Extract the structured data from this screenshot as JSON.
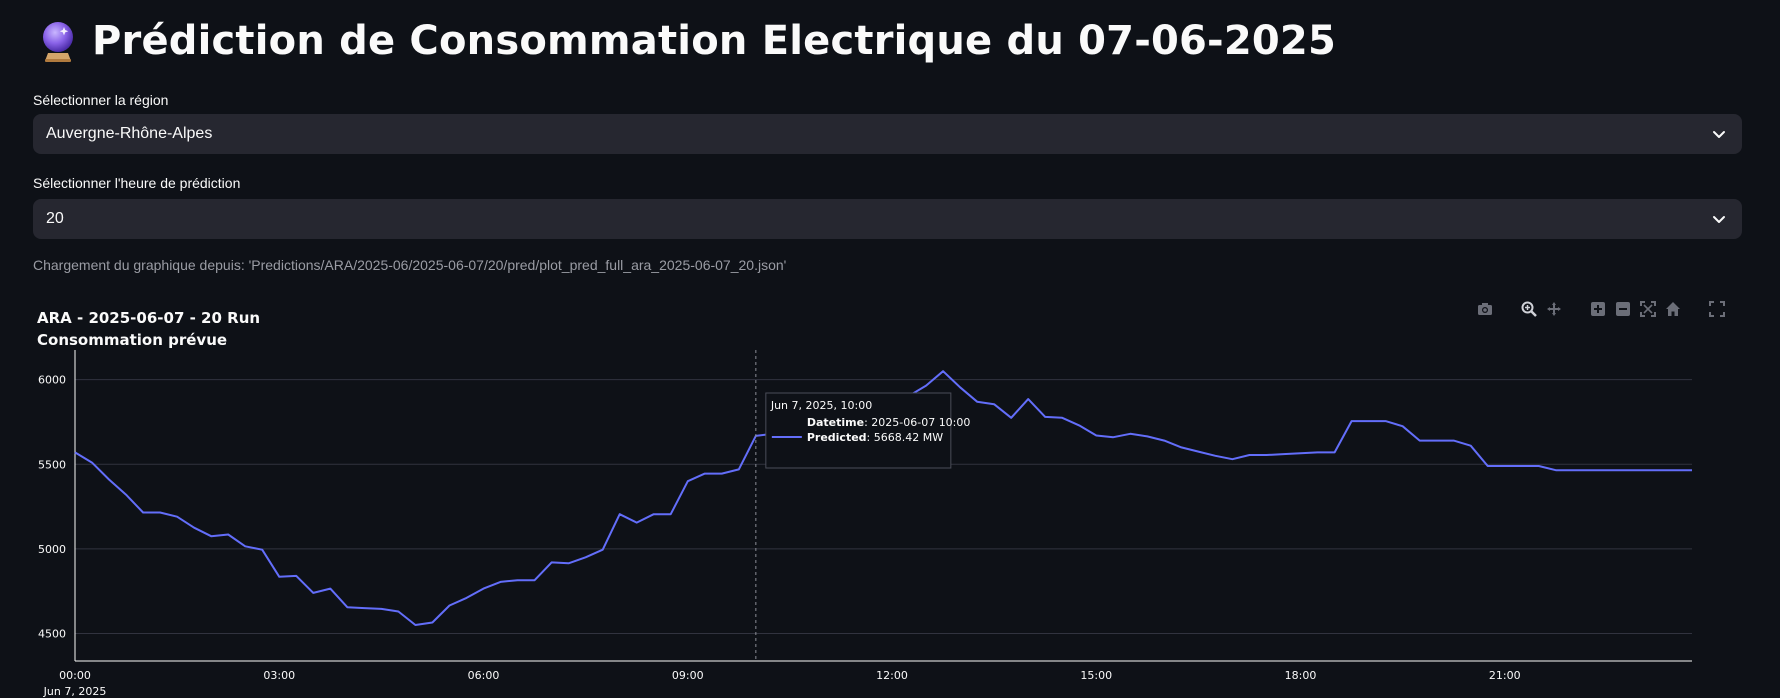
{
  "page": {
    "title": "Prédiction de Consommation Electrique du 07-06-2025",
    "title_icon": "crystal-ball-icon"
  },
  "region_select": {
    "label": "Sélectionner la région",
    "value": "Auvergne-Rhône-Alpes"
  },
  "hour_select": {
    "label": "Sélectionner l'heure de prédiction",
    "value": "20"
  },
  "caption": "Chargement du graphique depuis: 'Predictions/ARA/2025-06/2025-06-07/20/pred/plot_pred_full_ara_2025-06-07_20.json'",
  "modebar": [
    "camera-icon",
    "zoom-icon",
    "pan-icon",
    "zoom-in-icon",
    "zoom-out-icon",
    "autoscale-icon",
    "home-icon",
    "fullscreen-icon"
  ],
  "colors": {
    "series": "#636efa",
    "background": "#0e1117",
    "grid": "#31333f",
    "text": "#fafafa"
  },
  "tooltip": {
    "header": "Jun 7, 2025, 10:00",
    "line1_key": "Datetime",
    "line1_val": ": 2025-06-07 10:00",
    "line2_key": "Predicted",
    "line2_val": ": 5668.42 MW"
  },
  "chart_data": {
    "type": "line",
    "title": "ARA - 2025-06-07 - 20 Run",
    "subtitle": "Consommation prévue",
    "x_tick_labels": [
      "00:00",
      "03:00",
      "06:00",
      "09:00",
      "12:00",
      "15:00",
      "18:00",
      "21:00"
    ],
    "x_date_label": "Jun 7, 2025",
    "y_ticks": [
      4500,
      5000,
      5500,
      6000
    ],
    "x_range_hours": [
      0,
      23.75
    ],
    "y_range": [
      4420,
      6140
    ],
    "hover_x_hour": 10,
    "grid": true,
    "series": [
      {
        "x_hours": [
          0,
          0.25,
          0.5,
          0.75,
          1.0,
          1.25,
          1.5,
          1.75,
          2.0,
          2.25,
          2.5,
          2.75,
          3.0,
          3.25,
          3.5,
          3.75,
          4.0,
          4.25,
          4.5,
          4.75,
          5.0,
          5.25,
          5.5,
          5.75,
          6.0,
          6.25,
          6.5,
          6.75,
          7.0,
          7.25,
          7.5,
          7.75,
          8.0,
          8.25,
          8.5,
          8.75,
          9.0,
          9.25,
          9.5,
          9.75,
          10.0,
          10.25,
          10.5,
          10.75,
          11.0,
          11.25,
          11.5,
          11.75,
          12.0,
          12.25,
          12.5,
          12.75,
          13.0,
          13.25,
          13.5,
          13.75,
          14.0,
          14.25,
          14.5,
          14.75,
          15.0,
          15.25,
          15.5,
          15.75,
          16.0,
          16.25,
          16.5,
          16.75,
          17.0,
          17.25,
          17.5,
          17.75,
          18.0,
          18.25,
          18.5,
          18.75,
          19.0,
          19.25,
          19.5,
          19.75,
          20.0,
          20.25,
          20.5,
          20.75,
          21.0,
          21.25,
          21.5,
          21.75,
          22.0,
          22.25,
          22.5,
          22.75,
          23.0,
          23.25,
          23.5,
          23.75
        ],
        "values": [
          5570,
          5510,
          5410,
          5320,
          5215,
          5215,
          5190,
          5125,
          5075,
          5085,
          5015,
          4995,
          4835,
          4840,
          4740,
          4765,
          4655,
          4650,
          4645,
          4630,
          4550,
          4565,
          4665,
          4710,
          4765,
          4805,
          4815,
          4815,
          4920,
          4915,
          4950,
          4995,
          5205,
          5155,
          5205,
          5205,
          5400,
          5445,
          5445,
          5470,
          5668,
          5680,
          5700,
          5720,
          5790,
          5850,
          5880,
          5905,
          5905,
          5905,
          5965,
          6050,
          5955,
          5870,
          5855,
          5775,
          5885,
          5780,
          5775,
          5730,
          5670,
          5660,
          5680,
          5665,
          5640,
          5600,
          5575,
          5550,
          5530,
          5555,
          5555,
          5560,
          5565,
          5570,
          5570,
          5755,
          5755,
          5755,
          5725,
          5640,
          5640,
          5640,
          5610,
          5490,
          5490,
          5490,
          5490,
          5465,
          5465,
          5465,
          5465,
          5465,
          5465,
          5465,
          5465,
          5465
        ]
      }
    ]
  }
}
